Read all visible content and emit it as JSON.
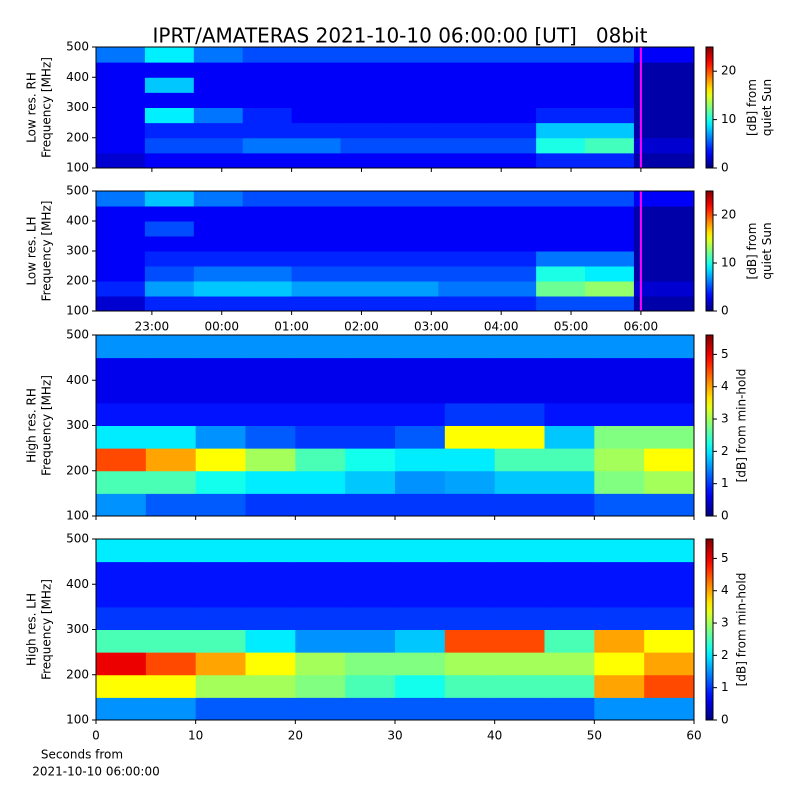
{
  "title": "IPRT/AMATERAS 2021-10-10 06:00:00 [UT]   08bit",
  "xlabel": [
    "Seconds from",
    "2021-10-10 06:00:00"
  ],
  "chart_data": [
    {
      "type": "heatmap",
      "ylabel": [
        "Low res. RH",
        "Frequency [MHz]"
      ],
      "zlabel": [
        "[dB] from",
        "quiet Sun"
      ],
      "xlim": [
        22.2,
        30.76
      ],
      "xticks": [
        23,
        24,
        25,
        26,
        27,
        28,
        29,
        30
      ],
      "show_xtick_labels": false,
      "ylim": [
        100,
        500
      ],
      "yticks": [
        100,
        200,
        300,
        400,
        500
      ],
      "zlim": [
        0,
        25
      ],
      "zticks": [
        0,
        10,
        20
      ],
      "vline": 30,
      "vline_color": "#ff00ff",
      "xbins": [
        22.2,
        22.9,
        23.6,
        24.3,
        25.0,
        25.7,
        26.4,
        27.1,
        27.8,
        28.5,
        29.2,
        29.9,
        30.76
      ],
      "ybins": [
        100,
        150,
        200,
        250,
        300,
        350,
        400,
        450,
        500
      ],
      "z": [
        [
          2,
          3,
          3,
          3,
          3,
          3,
          3,
          3,
          3,
          4,
          4,
          1
        ],
        [
          3,
          5,
          5,
          6,
          6,
          5,
          5,
          5,
          5,
          10,
          11,
          2
        ],
        [
          3,
          4,
          4,
          4,
          4,
          4,
          4,
          4,
          4,
          8,
          8,
          1
        ],
        [
          3,
          9,
          6,
          4,
          3,
          3,
          3,
          3,
          3,
          4,
          4,
          1
        ],
        [
          3,
          3,
          3,
          3,
          3,
          3,
          3,
          3,
          3,
          3,
          3,
          1
        ],
        [
          3,
          8,
          3,
          3,
          3,
          3,
          3,
          3,
          3,
          3,
          3,
          1
        ],
        [
          3,
          3,
          3,
          3,
          3,
          3,
          3,
          3,
          3,
          3,
          3,
          1
        ],
        [
          6,
          9,
          6,
          5,
          5,
          5,
          5,
          5,
          5,
          5,
          5,
          3
        ]
      ]
    },
    {
      "type": "heatmap",
      "ylabel": [
        "Low res. LH",
        "Frequency [MHz]"
      ],
      "zlabel": [
        "[dB] from",
        "quiet Sun"
      ],
      "xlim": [
        22.2,
        30.76
      ],
      "xticks": [
        {
          "value": 23,
          "label": "23:00"
        },
        {
          "value": 24,
          "label": "00:00"
        },
        {
          "value": 25,
          "label": "01:00"
        },
        {
          "value": 26,
          "label": "02:00"
        },
        {
          "value": 27,
          "label": "03:00"
        },
        {
          "value": 28,
          "label": "04:00"
        },
        {
          "value": 29,
          "label": "05:00"
        },
        {
          "value": 30,
          "label": "06:00"
        }
      ],
      "show_xtick_labels": true,
      "ylim": [
        100,
        500
      ],
      "yticks": [
        100,
        200,
        300,
        400,
        500
      ],
      "zlim": [
        0,
        25
      ],
      "zticks": [
        0,
        10,
        20
      ],
      "vline": 30,
      "vline_color": "#ff00ff",
      "xbins": [
        22.2,
        22.9,
        23.6,
        24.3,
        25.0,
        25.7,
        26.4,
        27.1,
        27.8,
        28.5,
        29.2,
        29.9,
        30.76
      ],
      "ybins": [
        100,
        150,
        200,
        250,
        300,
        350,
        400,
        450,
        500
      ],
      "z": [
        [
          2,
          4,
          4,
          4,
          4,
          4,
          4,
          4,
          4,
          5,
          5,
          1
        ],
        [
          4,
          7,
          8,
          8,
          7,
          7,
          7,
          6,
          6,
          12,
          13,
          2
        ],
        [
          3,
          5,
          6,
          6,
          5,
          5,
          5,
          5,
          5,
          10,
          9,
          1
        ],
        [
          3,
          4,
          4,
          4,
          4,
          4,
          4,
          4,
          4,
          6,
          6,
          1
        ],
        [
          3,
          3,
          3,
          3,
          3,
          3,
          3,
          3,
          3,
          3,
          3,
          1
        ],
        [
          3,
          5,
          3,
          3,
          3,
          3,
          3,
          3,
          3,
          3,
          3,
          1
        ],
        [
          3,
          3,
          3,
          3,
          3,
          3,
          3,
          3,
          3,
          3,
          3,
          1
        ],
        [
          6,
          8,
          6,
          5,
          5,
          5,
          5,
          5,
          5,
          5,
          5,
          3
        ]
      ]
    },
    {
      "type": "heatmap",
      "ylabel": [
        "High res. RH",
        "Frequency [MHz]"
      ],
      "zlabel": [
        "[dB] from min-hold"
      ],
      "xlim": [
        0,
        60
      ],
      "xticks": [
        0,
        10,
        20,
        30,
        40,
        50,
        60
      ],
      "show_xtick_labels": false,
      "ylim": [
        100,
        500
      ],
      "yticks": [
        100,
        200,
        300,
        400,
        500
      ],
      "zlim": [
        0,
        5.6
      ],
      "zticks": [
        0,
        1,
        2,
        3,
        4,
        5
      ],
      "xbins": [
        0,
        5,
        10,
        15,
        20,
        25,
        30,
        35,
        40,
        45,
        50,
        55,
        60
      ],
      "ybins": [
        100,
        150,
        200,
        250,
        300,
        350,
        400,
        450,
        500
      ],
      "z": [
        [
          1.5,
          1.2,
          1.2,
          1.0,
          1.0,
          1.0,
          1.0,
          1.0,
          1.0,
          1.0,
          1.2,
          1.2
        ],
        [
          2.5,
          2.5,
          2.2,
          2.0,
          2.0,
          1.8,
          1.5,
          1.6,
          1.8,
          1.8,
          2.8,
          3.0
        ],
        [
          4.5,
          4.0,
          3.5,
          3.0,
          2.5,
          2.2,
          2.0,
          2.0,
          2.5,
          2.5,
          3.0,
          3.5
        ],
        [
          2.0,
          2.0,
          1.5,
          1.2,
          1.0,
          1.0,
          1.2,
          3.5,
          3.5,
          1.8,
          2.8,
          2.8
        ],
        [
          0.8,
          0.8,
          0.8,
          0.8,
          0.8,
          0.8,
          0.8,
          1.0,
          1.0,
          0.8,
          0.8,
          0.8
        ],
        [
          0.6,
          0.6,
          0.6,
          0.6,
          0.6,
          0.6,
          0.6,
          0.6,
          0.6,
          0.6,
          0.6,
          0.6
        ],
        [
          0.6,
          0.6,
          0.6,
          0.6,
          0.6,
          0.6,
          0.6,
          0.6,
          0.6,
          0.6,
          0.6,
          0.6
        ],
        [
          1.5,
          1.5,
          1.5,
          1.5,
          1.5,
          1.5,
          1.5,
          1.5,
          1.5,
          1.5,
          1.5,
          1.5
        ]
      ]
    },
    {
      "type": "heatmap",
      "ylabel": [
        "High res. LH",
        "Frequency [MHz]"
      ],
      "zlabel": [
        "[dB] from min-hold"
      ],
      "xlim": [
        0,
        60
      ],
      "xticks": [
        0,
        10,
        20,
        30,
        40,
        50,
        60
      ],
      "show_xtick_labels": true,
      "ylim": [
        100,
        500
      ],
      "yticks": [
        100,
        200,
        300,
        400,
        500
      ],
      "zlim": [
        0,
        5.6
      ],
      "zticks": [
        0,
        1,
        2,
        3,
        4,
        5
      ],
      "xbins": [
        0,
        5,
        10,
        15,
        20,
        25,
        30,
        35,
        40,
        45,
        50,
        55,
        60
      ],
      "ybins": [
        100,
        150,
        200,
        250,
        300,
        350,
        400,
        450,
        500
      ],
      "z": [
        [
          1.5,
          1.5,
          1.2,
          1.2,
          1.2,
          1.2,
          1.2,
          1.2,
          1.2,
          1.2,
          1.5,
          1.5
        ],
        [
          3.5,
          3.5,
          3.0,
          3.0,
          2.8,
          2.5,
          2.2,
          2.5,
          2.5,
          2.5,
          4.0,
          4.5
        ],
        [
          5.0,
          4.5,
          4.0,
          3.5,
          3.0,
          2.8,
          2.8,
          3.0,
          3.0,
          3.0,
          3.5,
          4.0
        ],
        [
          2.5,
          2.5,
          2.5,
          2.0,
          1.5,
          1.5,
          1.8,
          4.5,
          4.5,
          2.5,
          4.0,
          3.5
        ],
        [
          1.0,
          1.0,
          1.0,
          1.0,
          1.0,
          1.0,
          1.0,
          1.0,
          1.0,
          1.0,
          1.0,
          1.0
        ],
        [
          0.8,
          0.8,
          0.8,
          0.8,
          0.8,
          0.8,
          0.8,
          0.8,
          0.8,
          0.8,
          0.8,
          0.8
        ],
        [
          0.8,
          0.8,
          0.8,
          0.8,
          0.8,
          0.8,
          0.8,
          0.8,
          0.8,
          0.8,
          0.8,
          0.8
        ],
        [
          2.0,
          2.0,
          2.0,
          2.0,
          2.0,
          2.0,
          2.0,
          2.0,
          2.0,
          2.0,
          2.0,
          2.0
        ]
      ]
    }
  ]
}
